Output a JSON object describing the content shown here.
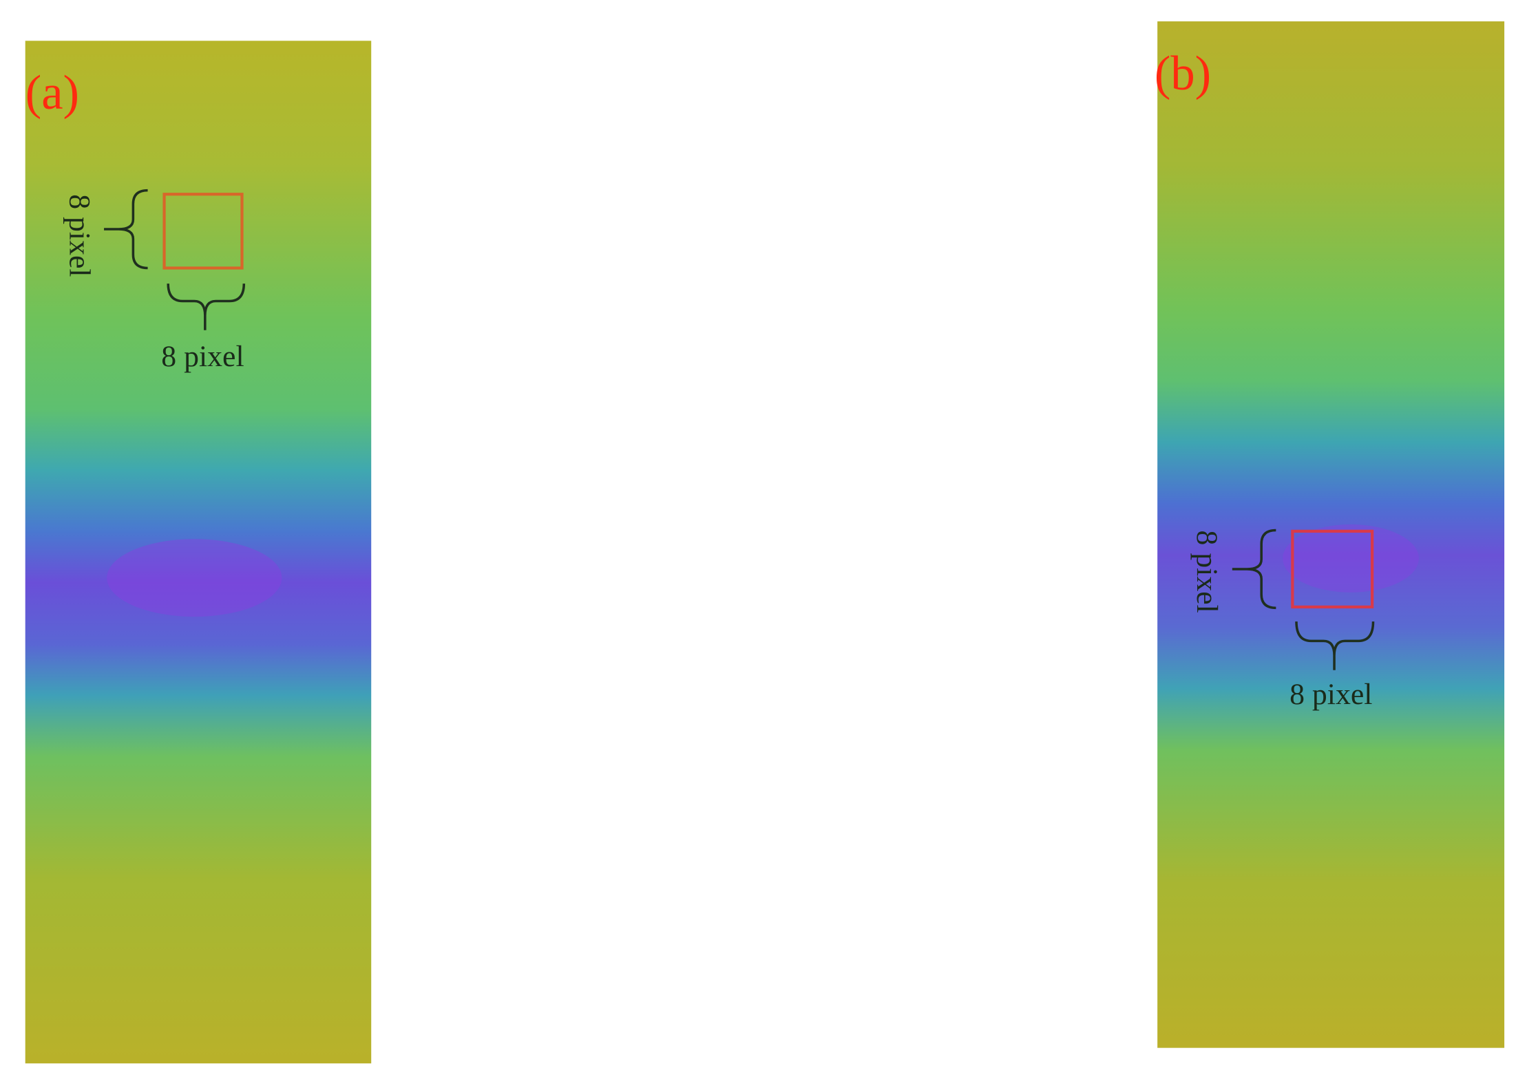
{
  "panels": [
    {
      "label": "(a)",
      "height_label": "8 pixel",
      "width_label": "8 pixel"
    },
    {
      "label": "(b)",
      "height_label": "8 pixel",
      "width_label": "8 pixel"
    }
  ]
}
